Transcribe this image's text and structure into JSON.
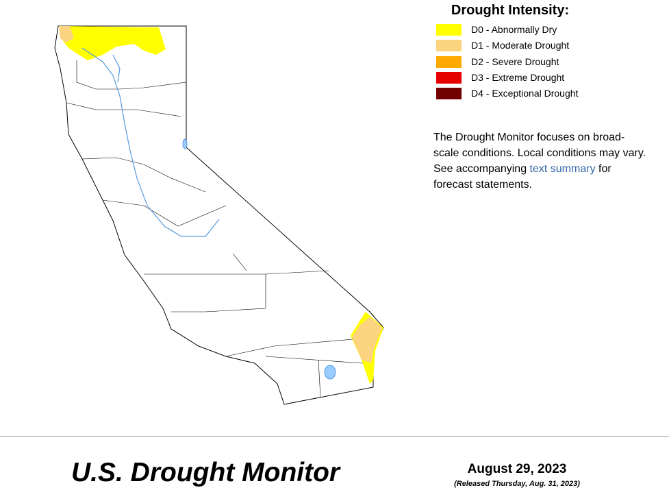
{
  "legend": {
    "title": "Drought Intensity:",
    "items": [
      {
        "label": "D0 - Abnormally Dry",
        "color": "#ffff00"
      },
      {
        "label": "D1 - Moderate Drought",
        "color": "#fcd37f"
      },
      {
        "label": "D2 - Severe Drought",
        "color": "#ffaa00"
      },
      {
        "label": "D3 - Extreme Drought",
        "color": "#e60000"
      },
      {
        "label": "D4 - Exceptional Drought",
        "color": "#730000"
      }
    ]
  },
  "note": {
    "before": "The Drought Monitor focuses on broad-scale conditions. Local conditions may vary. See accompanying",
    "link": "text summary",
    "after": "for forecast statements."
  },
  "footer": {
    "title": "U.S. Drought Monitor",
    "date": "August 29, 2023",
    "released": "(Released Thursday, Aug. 31, 2023)"
  }
}
